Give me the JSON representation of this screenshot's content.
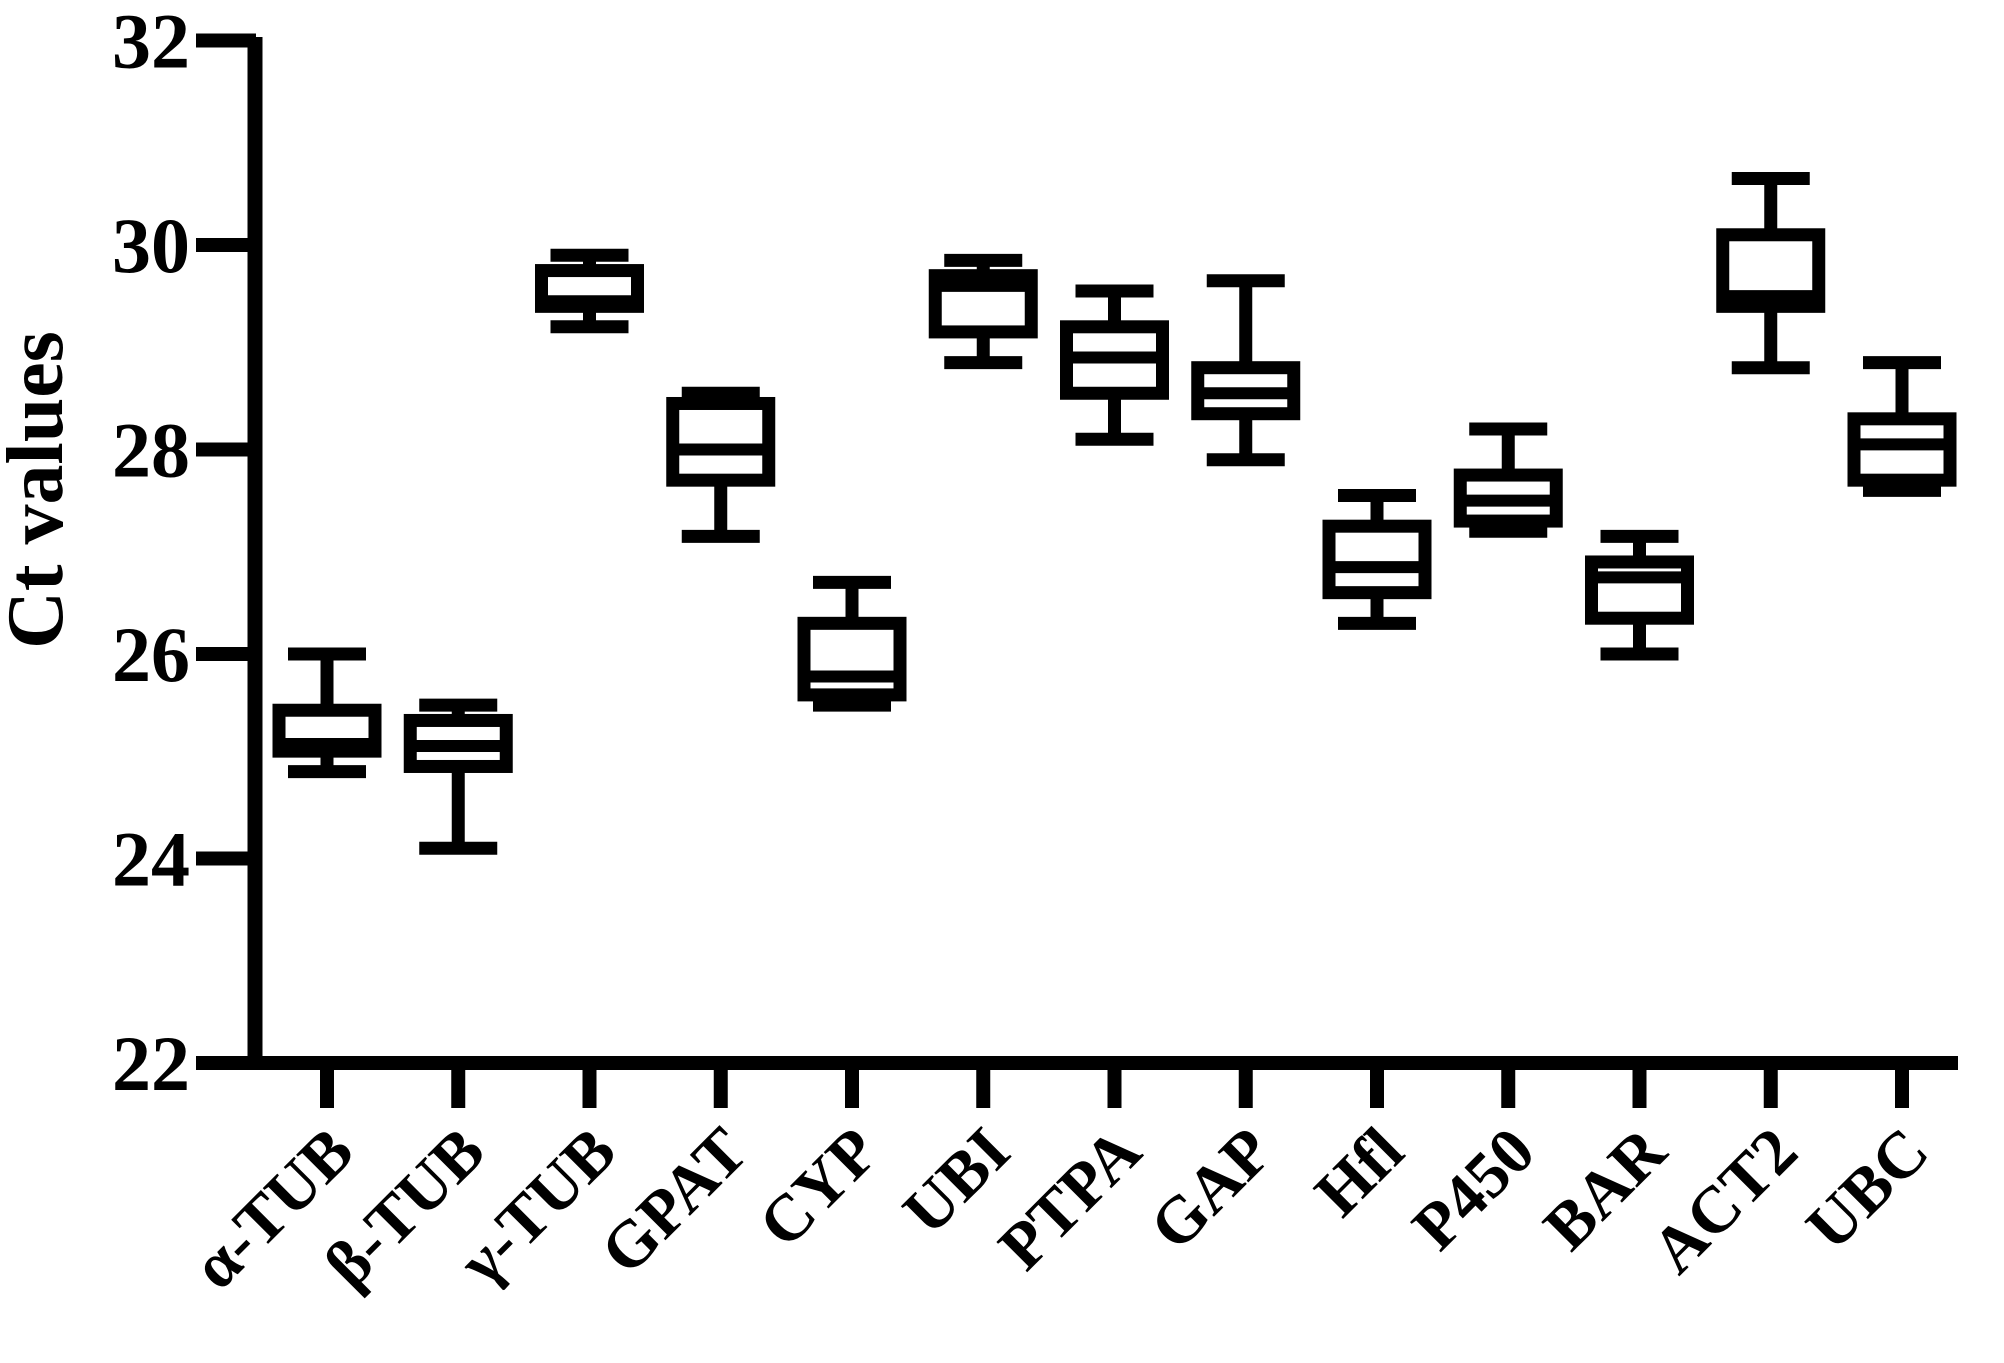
{
  "figure": {
    "background_color": "#ffffff",
    "ink_color": "#000000"
  },
  "y_axis": {
    "title": "Ct values",
    "tick_labels": [
      "32",
      "30",
      "28",
      "26",
      "24",
      "22"
    ]
  },
  "chart_data": {
    "type": "box",
    "title": "",
    "xlabel": "",
    "ylabel": "Ct values",
    "ylim": [
      22,
      32
    ],
    "yticks": [
      22,
      24,
      26,
      28,
      30,
      32
    ],
    "grid": false,
    "legend": null,
    "categories": [
      "α-TUB",
      "β-TUB",
      "γ-TUB",
      "GPAT",
      "CYP",
      "UBI",
      "PTPA",
      "GAP",
      "Hfl",
      "P450",
      "BAR",
      "ACT2",
      "UBC"
    ],
    "series": [
      {
        "name": "α-TUB",
        "min": 24.85,
        "q1": 25.05,
        "median": 25.12,
        "q3": 25.45,
        "max": 26.0
      },
      {
        "name": "β-TUB",
        "min": 24.1,
        "q1": 24.9,
        "median": 25.1,
        "q3": 25.35,
        "max": 25.5
      },
      {
        "name": "γ-TUB",
        "min": 29.2,
        "q1": 29.4,
        "median": 29.45,
        "q3": 29.75,
        "max": 29.9
      },
      {
        "name": "GPAT",
        "min": 27.15,
        "q1": 27.7,
        "median": 28.0,
        "q3": 28.45,
        "max": 28.55
      },
      {
        "name": "CYP",
        "min": 25.5,
        "q1": 25.6,
        "median": 25.78,
        "q3": 26.3,
        "max": 26.7
      },
      {
        "name": "UBI",
        "min": 28.85,
        "q1": 29.15,
        "median": 29.6,
        "q3": 29.7,
        "max": 29.85
      },
      {
        "name": "PTPA",
        "min": 28.1,
        "q1": 28.55,
        "median": 28.9,
        "q3": 29.2,
        "max": 29.55
      },
      {
        "name": "GAP",
        "min": 27.9,
        "q1": 28.35,
        "median": 28.55,
        "q3": 28.8,
        "max": 29.65
      },
      {
        "name": "Hfl",
        "min": 26.3,
        "q1": 26.6,
        "median": 26.85,
        "q3": 27.25,
        "max": 27.55
      },
      {
        "name": "P450",
        "min": 27.2,
        "q1": 27.3,
        "median": 27.5,
        "q3": 27.75,
        "max": 28.2
      },
      {
        "name": "BAR",
        "min": 26.0,
        "q1": 26.35,
        "median": 26.75,
        "q3": 26.9,
        "max": 27.15
      },
      {
        "name": "ACT2",
        "min": 28.8,
        "q1": 29.4,
        "median": 29.5,
        "q3": 30.1,
        "max": 30.65
      },
      {
        "name": "UBC",
        "min": 27.6,
        "q1": 27.7,
        "median": 28.05,
        "q3": 28.3,
        "max": 28.85
      }
    ]
  }
}
